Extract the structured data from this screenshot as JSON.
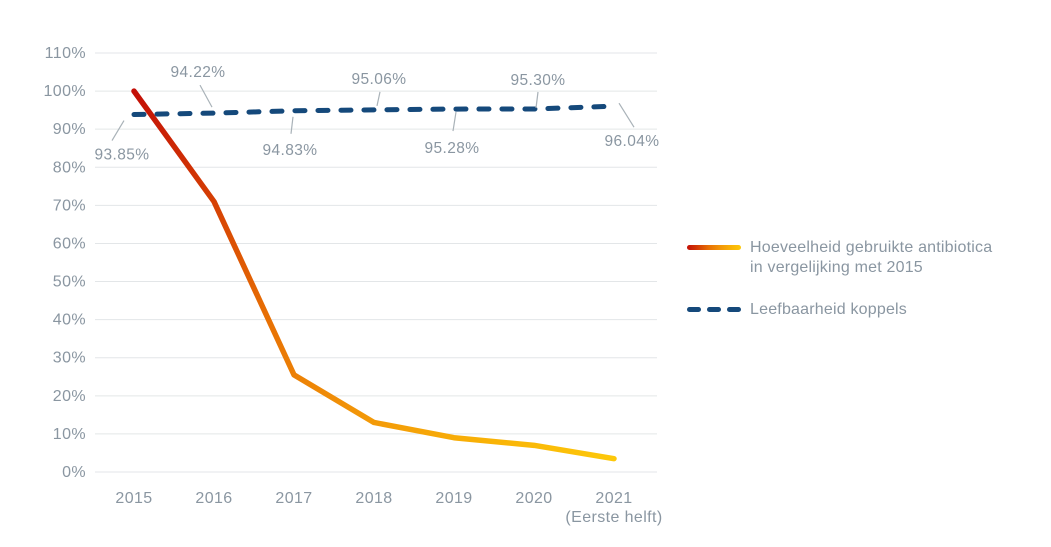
{
  "chart_data": {
    "type": "line",
    "categories": [
      "2015",
      "2016",
      "2017",
      "2018",
      "2019",
      "2020",
      "2021"
    ],
    "xtick_lines": [
      [
        "2015"
      ],
      [
        "2016"
      ],
      [
        "2017"
      ],
      [
        "2018"
      ],
      [
        "2019"
      ],
      [
        "2020"
      ],
      [
        "2021",
        "(Eerste helft)"
      ]
    ],
    "ylim": [
      0,
      110
    ],
    "yticks": [
      0,
      10,
      20,
      30,
      40,
      50,
      60,
      70,
      80,
      90,
      100,
      110
    ],
    "yticklabels": [
      "0%",
      "10%",
      "20%",
      "30%",
      "40%",
      "50%",
      "60%",
      "70%",
      "80%",
      "90%",
      "100%",
      "110%"
    ],
    "grid": "horizontal",
    "legend_position": "right",
    "series": [
      {
        "name": "Hoeveelheid gebruikte antibiotica in vergelijking met 2015",
        "line_style": "solid-gradient",
        "values": [
          100,
          71,
          25.5,
          13,
          9,
          7,
          3.5
        ],
        "gradient_stops": [
          {
            "offset": 0,
            "color": "#c30f07"
          },
          {
            "offset": 0.18,
            "color": "#d23704"
          },
          {
            "offset": 0.4,
            "color": "#e76f04"
          },
          {
            "offset": 0.62,
            "color": "#f29608"
          },
          {
            "offset": 0.82,
            "color": "#f9b307"
          },
          {
            "offset": 1,
            "color": "#fdc80a"
          }
        ]
      },
      {
        "name": "Leefbaarheid koppels",
        "line_style": "dashed",
        "color": "#15497b",
        "values": [
          93.85,
          94.22,
          94.83,
          95.06,
          95.28,
          95.3,
          96.04
        ],
        "point_labels": [
          {
            "text": "93.85%",
            "dx": -12,
            "dy": 45,
            "c1": [
              -10,
              6
            ],
            "c2": [
              -22,
              26
            ]
          },
          {
            "text": "94.22%",
            "dx": -16,
            "dy": -36,
            "c1": [
              -14,
              -28
            ],
            "c2": [
              -2,
              -6
            ]
          },
          {
            "text": "94.83%",
            "dx": -4,
            "dy": 44,
            "c1": [
              -1,
              6
            ],
            "c2": [
              -3,
              23
            ]
          },
          {
            "text": "95.06%",
            "dx": 5,
            "dy": -26,
            "c1": [
              6,
              -18
            ],
            "c2": [
              3,
              -4
            ]
          },
          {
            "text": "95.28%",
            "dx": -2,
            "dy": 44,
            "c1": [
              2,
              3
            ],
            "c2": [
              -1,
              22
            ]
          },
          {
            "text": "95.30%",
            "dx": 4,
            "dy": -24,
            "c1": [
              4,
              -17
            ],
            "c2": [
              2,
              -1
            ]
          },
          {
            "text": "96.04%",
            "dx": 18,
            "dy": 40,
            "c1": [
              5,
              -3
            ],
            "c2": [
              20,
              21
            ]
          }
        ]
      }
    ],
    "colors": {
      "grid": "#e3e6e8",
      "tick_text": "#8a96a1",
      "label_text": "#8a96a1",
      "callout": "#a9b2b8",
      "dashed_line": "#15497b"
    }
  },
  "legend": {
    "items": [
      {
        "label": "Hoeveelheid gebruikte antibiotica\nin vergelijking met 2015",
        "swatch": "gradient-line"
      },
      {
        "label": "Leefbaarheid koppels",
        "swatch": "dashed-line"
      }
    ]
  }
}
